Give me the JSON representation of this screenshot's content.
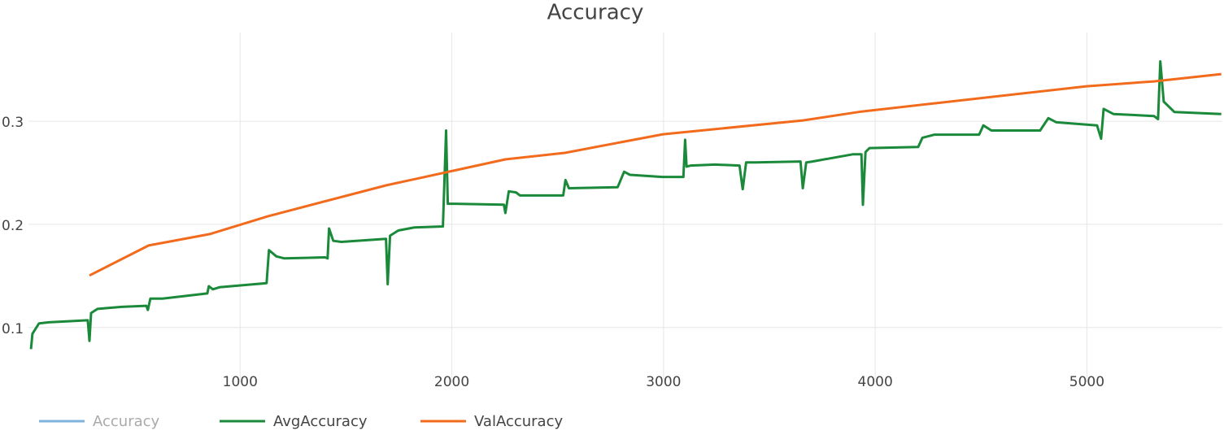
{
  "chart_data": {
    "type": "line",
    "title": "Accuracy",
    "xlim": [
      0,
      5640
    ],
    "xticks": [
      1000,
      2000,
      3000,
      4000,
      5000
    ],
    "ylim": [
      0.047,
      0.386
    ],
    "yticks": [
      0.1,
      0.2,
      0.3
    ],
    "grid": true,
    "legend": "bottom",
    "series": [
      {
        "name": "Accuracy",
        "color": "#7fb3dc",
        "visible": false,
        "x": [],
        "values": []
      },
      {
        "name": "AvgAccuracy",
        "color": "#1a8a3a",
        "visible": true,
        "x": [
          12,
          19,
          50,
          96,
          280,
          288,
          296,
          326,
          441,
          557,
          564,
          576,
          633,
          845,
          852,
          871,
          902,
          1125,
          1136,
          1171,
          1209,
          1401,
          1413,
          1420,
          1440,
          1478,
          1689,
          1697,
          1708,
          1747,
          1823,
          1958,
          1973,
          1981,
          2015,
          2246,
          2253,
          2269,
          2303,
          2322,
          2526,
          2537,
          2553,
          2783,
          2814,
          2841,
          2994,
          3094,
          3102,
          3109,
          3129,
          3244,
          3359,
          3374,
          3390,
          3436,
          3647,
          3658,
          3674,
          3704,
          3896,
          3935,
          3942,
          3954,
          3973,
          4203,
          4223,
          4280,
          4491,
          4511,
          4549,
          4779,
          4818,
          4856,
          5048,
          5067,
          5079,
          5125,
          5317,
          5336,
          5347,
          5363,
          5413,
          5635
        ],
        "values": [
          0.079,
          0.094,
          0.104,
          0.105,
          0.107,
          0.087,
          0.114,
          0.118,
          0.12,
          0.121,
          0.117,
          0.128,
          0.128,
          0.133,
          0.14,
          0.137,
          0.139,
          0.143,
          0.175,
          0.169,
          0.167,
          0.168,
          0.167,
          0.196,
          0.184,
          0.183,
          0.186,
          0.142,
          0.189,
          0.194,
          0.197,
          0.198,
          0.291,
          0.22,
          0.22,
          0.219,
          0.211,
          0.232,
          0.231,
          0.228,
          0.228,
          0.243,
          0.235,
          0.236,
          0.251,
          0.248,
          0.246,
          0.246,
          0.282,
          0.256,
          0.257,
          0.258,
          0.257,
          0.234,
          0.26,
          0.26,
          0.261,
          0.235,
          0.26,
          0.261,
          0.268,
          0.268,
          0.219,
          0.27,
          0.274,
          0.275,
          0.284,
          0.287,
          0.287,
          0.296,
          0.291,
          0.291,
          0.303,
          0.299,
          0.296,
          0.283,
          0.312,
          0.307,
          0.305,
          0.302,
          0.358,
          0.319,
          0.309,
          0.307
        ]
      },
      {
        "name": "ValAccuracy",
        "color": "#f26b1d",
        "visible": true,
        "x": [
          288,
          568,
          856,
          1132,
          1689,
          1989,
          2253,
          2534,
          2998,
          3658,
          3935,
          4280,
          4998,
          5317,
          5635
        ],
        "values": [
          0.1504,
          0.1795,
          0.1906,
          0.2079,
          0.2378,
          0.2512,
          0.263,
          0.2693,
          0.2874,
          0.3008,
          0.3094,
          0.3173,
          0.3339,
          0.3386,
          0.3457
        ]
      }
    ]
  }
}
